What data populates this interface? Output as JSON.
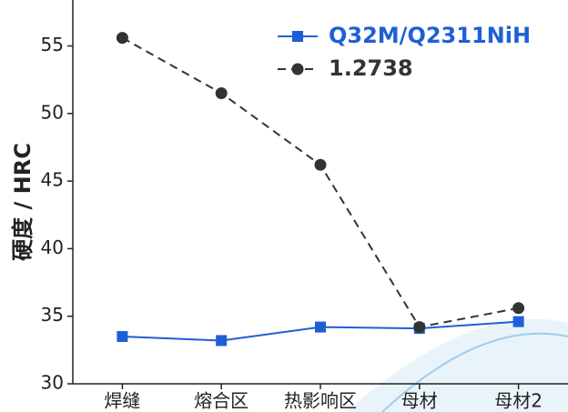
{
  "chart_data": {
    "type": "line",
    "y_label": "硬度 / HRC",
    "categories": [
      "焊缝",
      "熔合区",
      "热影响区",
      "母材",
      "母材2"
    ],
    "series": [
      {
        "name": "Q32M/Q2311NiH",
        "color": "#1f5fd6",
        "marker": "square",
        "linestyle": "solid",
        "values": [
          33.5,
          33.2,
          34.2,
          34.1,
          34.6
        ]
      },
      {
        "name": "1.2738",
        "color": "#333333",
        "marker": "circle",
        "linestyle": "dashed",
        "values": [
          55.6,
          51.5,
          46.2,
          34.2,
          35.6
        ]
      }
    ],
    "ylim": [
      30,
      58.4
    ],
    "yticks": [
      30,
      35,
      40,
      45,
      50,
      55
    ],
    "legend": "upper right"
  }
}
